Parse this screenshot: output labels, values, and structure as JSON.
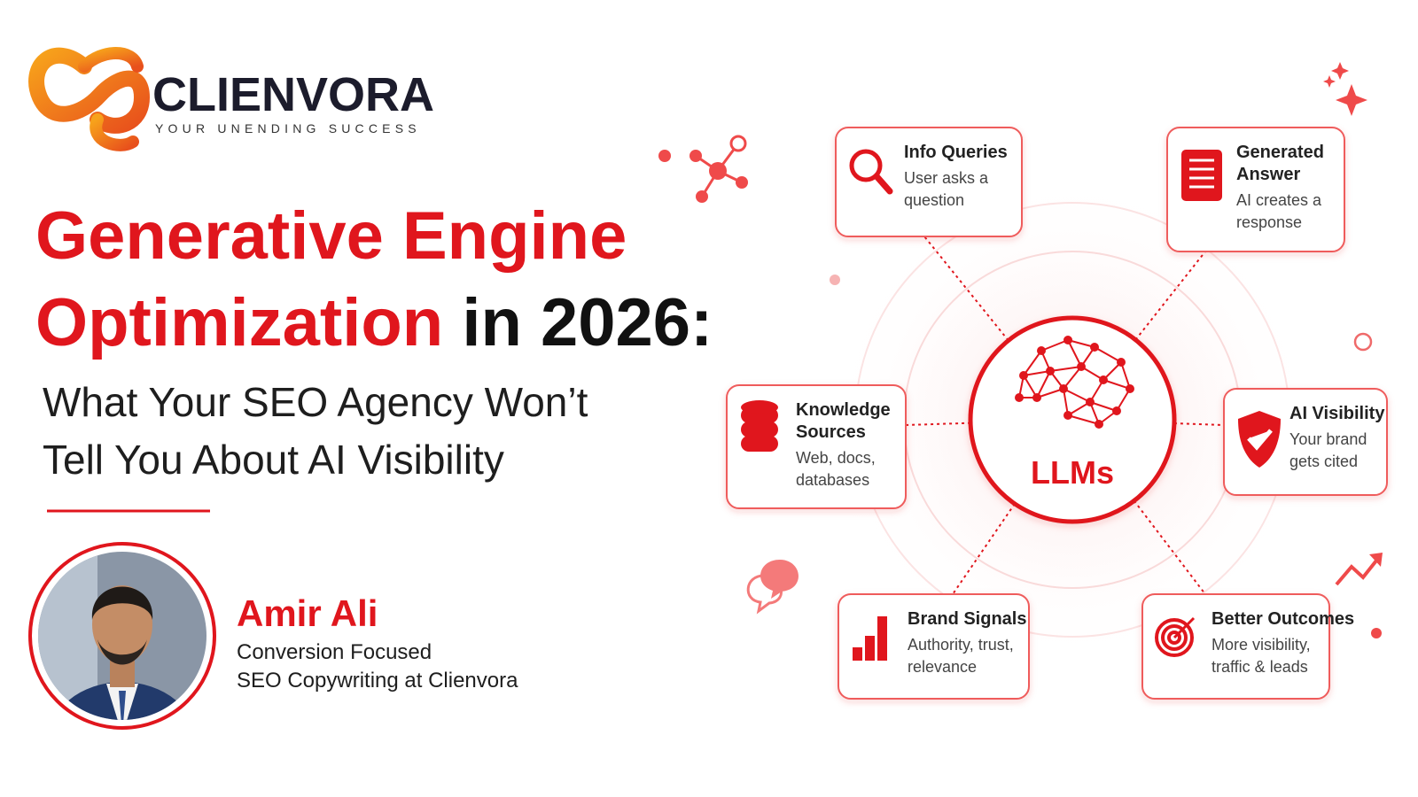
{
  "logo": {
    "name": "CLIENVORA",
    "tagline": "YOUR UNENDING SUCCESS"
  },
  "title": {
    "line1": "Generative Engine",
    "line2_highlight": "Optimization",
    "line2_rest": "in 2026:"
  },
  "subtitle": [
    "What Your SEO Agency Won’t",
    "Tell You About AI Visibility"
  ],
  "author": {
    "name": "Amir Ali",
    "role": [
      "Conversion Focused",
      "SEO Copywriting at Clienvora"
    ]
  },
  "center": {
    "label": "LLMs"
  },
  "nodes": [
    {
      "title": [
        "Info Queries"
      ],
      "description": [
        "User asks a",
        "question"
      ]
    },
    {
      "title": [
        "Generated",
        "Answer"
      ],
      "description": [
        "AI creates a",
        "response"
      ]
    },
    {
      "title": [
        "Knowledge",
        "Sources"
      ],
      "description": [
        "Web, docs,",
        "databases"
      ]
    },
    {
      "title": [
        "AI Visibility"
      ],
      "description": [
        "Your brand",
        "gets cited"
      ]
    },
    {
      "title": [
        "Brand Signals"
      ],
      "description": [
        "Authority, trust,",
        "relevance"
      ]
    },
    {
      "title": [
        "Better Outcomes"
      ],
      "description": [
        "More visibility,",
        "traffic & leads"
      ]
    }
  ]
}
